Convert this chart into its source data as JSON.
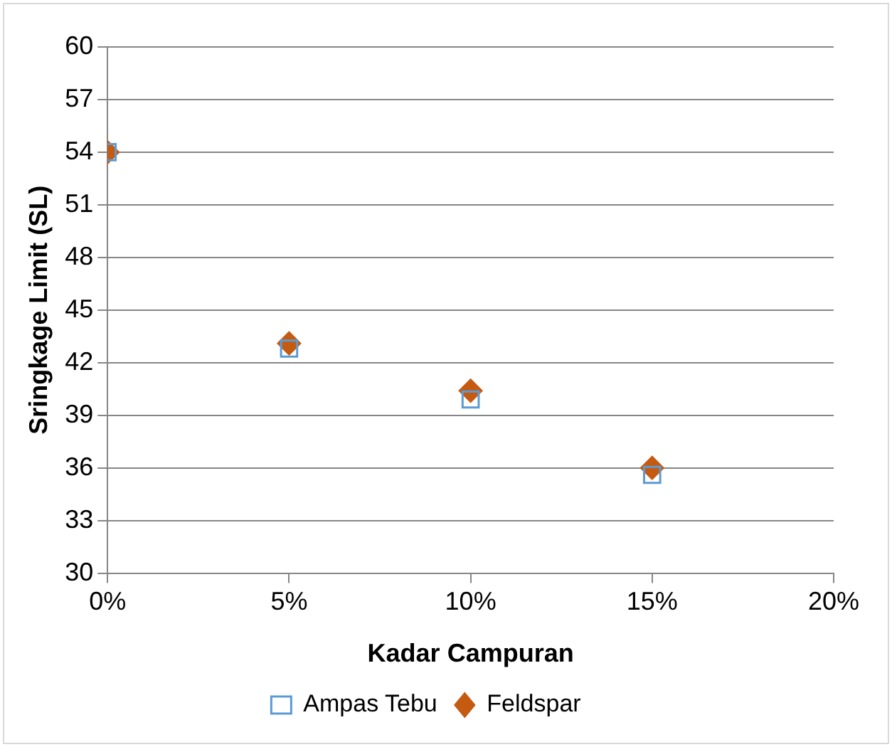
{
  "chart_data": {
    "type": "scatter",
    "xlabel": "Kadar Campuran",
    "ylabel": "Sringkage Limit (SL)",
    "x": [
      0,
      0.05,
      0.1,
      0.15
    ],
    "series": [
      {
        "name": "Ampas Tebu",
        "color": "#5b9bd5",
        "marker": "square",
        "values": [
          54,
          42.8,
          39.9,
          35.6
        ]
      },
      {
        "name": "Feldspar",
        "color": "#c55a11",
        "marker": "diamond",
        "values": [
          54,
          43.1,
          40.4,
          36.0
        ]
      }
    ],
    "xlim": [
      0,
      0.2
    ],
    "xticks": [
      {
        "value": 0,
        "label": "0%"
      },
      {
        "value": 0.05,
        "label": "5%"
      },
      {
        "value": 0.1,
        "label": "10%"
      },
      {
        "value": 0.15,
        "label": "15%"
      },
      {
        "value": 0.2,
        "label": "20%"
      }
    ],
    "ylim": [
      30,
      60
    ],
    "yticks": [
      30,
      33,
      36,
      39,
      42,
      45,
      48,
      51,
      54,
      57,
      60
    ],
    "grid": "y",
    "legend": "bottom"
  }
}
